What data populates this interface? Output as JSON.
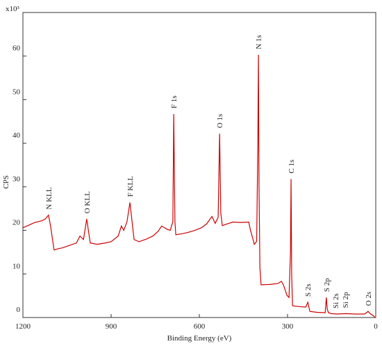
{
  "chart_data": {
    "type": "line",
    "y_unit": "x10³",
    "xlabel": "Binding Energy (eV)",
    "ylabel": "CPS",
    "xlim": [
      1200,
      0
    ],
    "ylim": [
      0,
      70
    ],
    "xticks": [
      1200,
      900,
      600,
      300,
      0
    ],
    "yticks": [
      0,
      10,
      20,
      30,
      40,
      50,
      60
    ],
    "series": [
      {
        "color": "#cc0000",
        "x": [
          1200,
          1180,
          1160,
          1136,
          1124,
          1113,
          1106,
          1094,
          1080,
          1065,
          1040,
          1018,
          1006,
          994,
          983,
          971,
          947,
          920,
          900,
          876,
          865,
          857,
          846,
          836,
          822,
          805,
          780,
          758,
          740,
          728,
          711,
          699,
          690,
          687,
          683,
          680,
          660,
          640,
          615,
          593,
          575,
          557,
          546,
          536,
          531,
          527,
          522,
          505,
          486,
          460,
          432,
          427,
          413,
          405,
          401,
          399,
          397,
          394,
          390,
          360,
          333,
          321,
          314,
          302,
          295,
          290,
          288,
          286,
          283,
          260,
          238,
          231,
          224,
          200,
          172,
          168,
          165,
          161,
          150,
          132,
          101,
          70,
          38,
          26,
          19,
          8,
          2
        ],
        "values": [
          20.6,
          21.2,
          21.8,
          22.2,
          22.6,
          23.5,
          21,
          15.5,
          15.8,
          16,
          16.6,
          17.1,
          18.7,
          17.9,
          22.6,
          17.1,
          16.8,
          17.1,
          17.4,
          18.7,
          21,
          20,
          22,
          26.4,
          17.9,
          17.4,
          18,
          18.7,
          19.8,
          21,
          20.3,
          20,
          22,
          46.7,
          22,
          19,
          19.2,
          19.5,
          20,
          20.6,
          21.5,
          23.2,
          21.6,
          23,
          42.2,
          24,
          21.1,
          21.5,
          21.9,
          21.8,
          21.9,
          20.3,
          16.8,
          17.5,
          40,
          60.3,
          30,
          11.5,
          7.5,
          7.6,
          7.8,
          8.3,
          7.5,
          5.1,
          4.6,
          15,
          31.8,
          10,
          2.7,
          2.5,
          2.4,
          3.5,
          1.4,
          1.2,
          1.1,
          4.6,
          2,
          1.1,
          0.9,
          0.8,
          0.9,
          0.8,
          0.8,
          1.4,
          0.9,
          0.4,
          0
        ]
      }
    ],
    "annotations": [
      {
        "text": "N KLL",
        "x": 1113
      },
      {
        "text": "O KLL",
        "x": 983
      },
      {
        "text": "F KLL",
        "x": 836
      },
      {
        "text": "F 1s",
        "x": 687
      },
      {
        "text": "O 1s",
        "x": 531
      },
      {
        "text": "N 1s",
        "x": 399
      },
      {
        "text": "C 1s",
        "x": 288
      },
      {
        "text": "S 2s",
        "x": 231
      },
      {
        "text": "S 2p",
        "x": 168
      },
      {
        "text": "Si 2s",
        "x": 137
      },
      {
        "text": "Si 2p",
        "x": 104
      },
      {
        "text": "O 2s",
        "x": 26
      }
    ]
  }
}
